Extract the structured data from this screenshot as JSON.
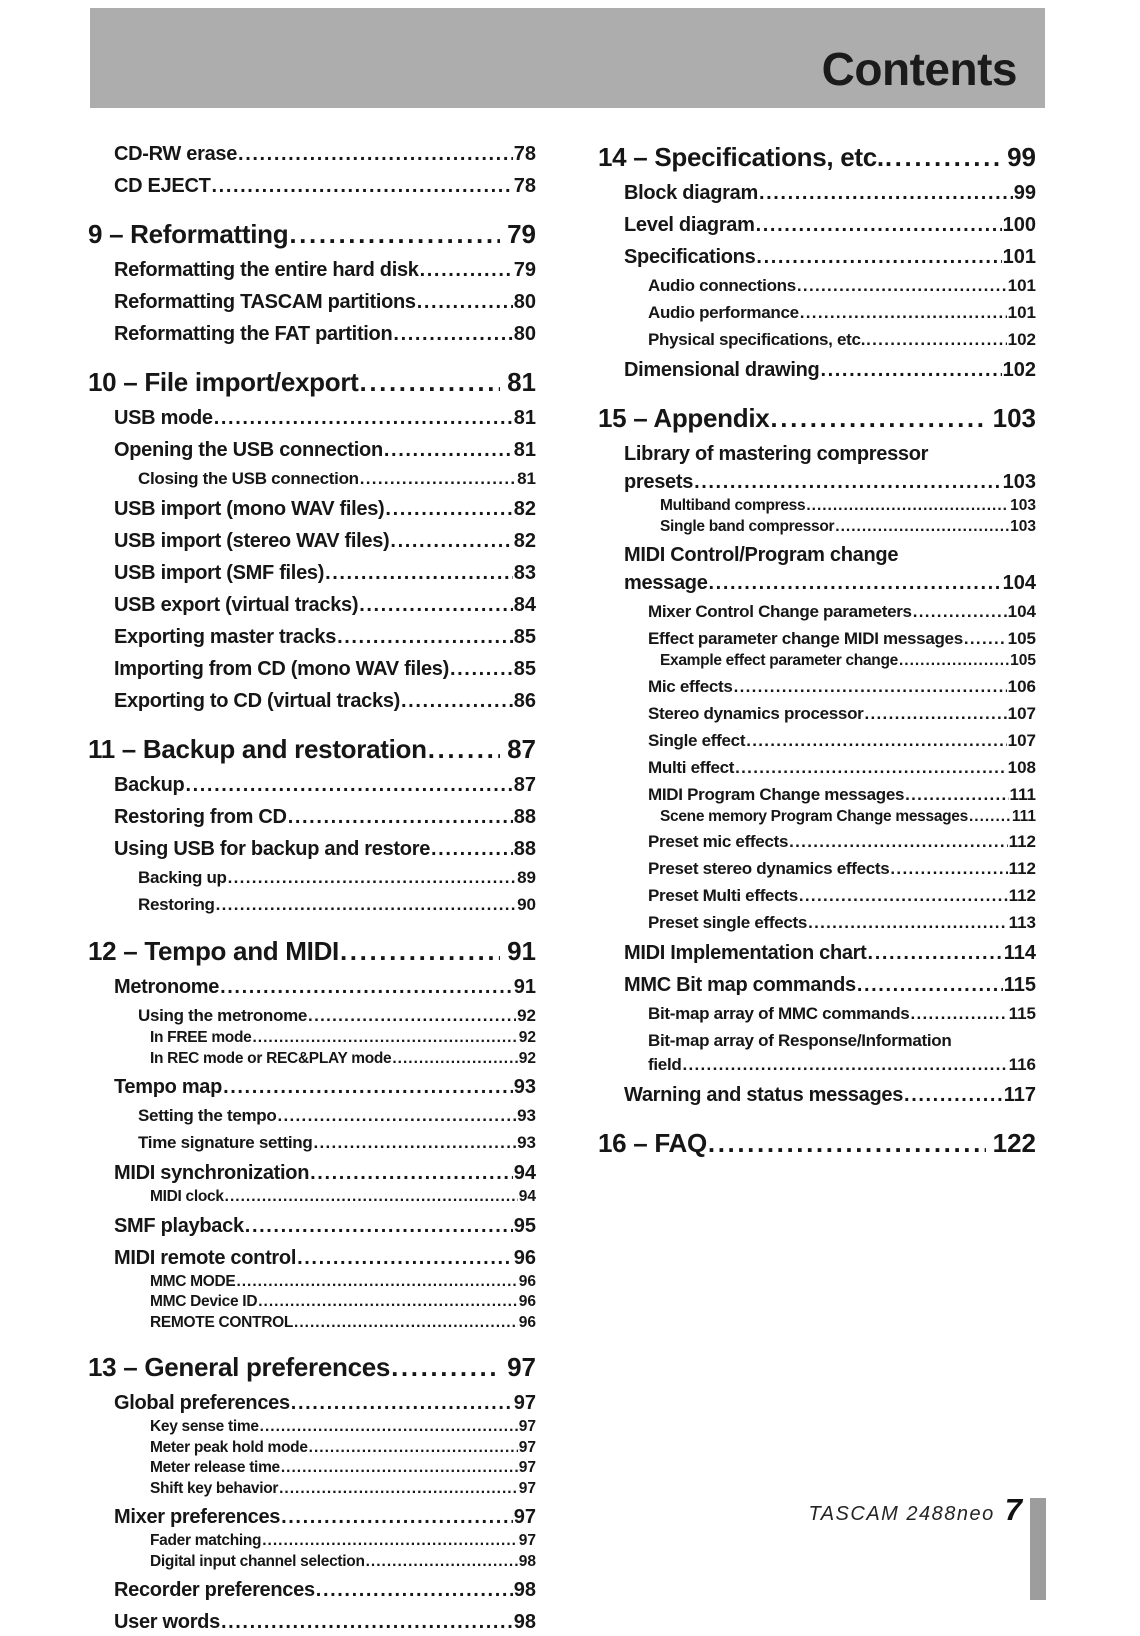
{
  "header": {
    "title": "Contents"
  },
  "footer": {
    "brand": "TASCAM 2488neo",
    "page_number": "7"
  },
  "colors": {
    "header_bg": "#adadad",
    "footer_tab": "#9d9d9d",
    "text": "#161616"
  },
  "toc": {
    "left": [
      {
        "level": "l1",
        "label": "CD-RW erase",
        "page": "78"
      },
      {
        "level": "l1",
        "label": "CD EJECT",
        "page": "78"
      },
      {
        "level": "ch",
        "label": "9 – Reformatting",
        "page": "79"
      },
      {
        "level": "l1",
        "label": "Reformatting the entire hard disk",
        "page": "79"
      },
      {
        "level": "l1",
        "label": "Reformatting TASCAM partitions",
        "page": "80"
      },
      {
        "level": "l1",
        "label": "Reformatting the FAT partition",
        "page": "80"
      },
      {
        "level": "ch",
        "label": "10 – File import/export",
        "page": "81"
      },
      {
        "level": "l1",
        "label": "USB mode",
        "page": "81"
      },
      {
        "level": "l1",
        "label": "Opening the USB connection",
        "page": "81"
      },
      {
        "level": "l2",
        "label": "Closing the USB connection",
        "page": "81"
      },
      {
        "level": "l1",
        "label": "USB import (mono WAV files)",
        "page": "82"
      },
      {
        "level": "l1",
        "label": "USB import (stereo WAV files)",
        "page": "82"
      },
      {
        "level": "l1",
        "label": "USB import (SMF files)",
        "page": "83"
      },
      {
        "level": "l1",
        "label": "USB export (virtual tracks)",
        "page": "84"
      },
      {
        "level": "l1",
        "label": "Exporting master tracks",
        "page": "85"
      },
      {
        "level": "l1",
        "label": "Importing from CD (mono WAV files)",
        "page": "85"
      },
      {
        "level": "l1",
        "label": "Exporting to CD (virtual tracks)",
        "page": "86"
      },
      {
        "level": "ch",
        "label": "11 – Backup and restoration",
        "page": "87"
      },
      {
        "level": "l1",
        "label": "Backup",
        "page": "87"
      },
      {
        "level": "l1",
        "label": "Restoring from CD",
        "page": "88"
      },
      {
        "level": "l1",
        "label": "Using USB for backup and restore",
        "page": "88"
      },
      {
        "level": "l2",
        "label": "Backing up",
        "page": "89"
      },
      {
        "level": "l2",
        "label": "Restoring",
        "page": "90"
      },
      {
        "level": "ch",
        "label": "12 – Tempo and MIDI",
        "page": "91"
      },
      {
        "level": "l1",
        "label": "Metronome",
        "page": "91"
      },
      {
        "level": "l2",
        "label": "Using the metronome",
        "page": "92"
      },
      {
        "level": "l3",
        "label": "In FREE mode",
        "page": "92"
      },
      {
        "level": "l3",
        "label": "In REC mode or REC&PLAY mode",
        "page": "92"
      },
      {
        "level": "l1",
        "label": "Tempo map",
        "page": "93"
      },
      {
        "level": "l2",
        "label": "Setting the tempo",
        "page": "93"
      },
      {
        "level": "l2",
        "label": "Time signature setting",
        "page": "93"
      },
      {
        "level": "l1",
        "label": "MIDI synchronization",
        "page": "94"
      },
      {
        "level": "l3",
        "label": "MIDI clock",
        "page": "94"
      },
      {
        "level": "l1",
        "label": "SMF playback",
        "page": "95"
      },
      {
        "level": "l1",
        "label": "MIDI remote control",
        "page": "96"
      },
      {
        "level": "l3",
        "label": "MMC MODE",
        "page": "96"
      },
      {
        "level": "l3",
        "label": "MMC Device ID",
        "page": "96"
      },
      {
        "level": "l3",
        "label": "REMOTE CONTROL",
        "page": "96"
      },
      {
        "level": "ch",
        "label": "13 – General preferences",
        "page": "97"
      },
      {
        "level": "l1",
        "label": "Global preferences",
        "page": "97"
      },
      {
        "level": "l3",
        "label": "Key sense time",
        "page": "97"
      },
      {
        "level": "l3",
        "label": "Meter peak hold mode",
        "page": "97"
      },
      {
        "level": "l3",
        "label": "Meter release time",
        "page": "97"
      },
      {
        "level": "l3",
        "label": "Shift key behavior",
        "page": "97"
      },
      {
        "level": "l1",
        "label": "Mixer preferences",
        "page": "97"
      },
      {
        "level": "l3",
        "label": "Fader matching",
        "page": "97"
      },
      {
        "level": "l3",
        "label": "Digital input channel selection",
        "page": "98"
      },
      {
        "level": "l1",
        "label": "Recorder preferences",
        "page": "98"
      },
      {
        "level": "l1",
        "label": "User words",
        "page": "98"
      }
    ],
    "right": [
      {
        "level": "ch",
        "label": "14 – Specifications, etc.",
        "page": "99"
      },
      {
        "level": "l1",
        "label": "Block diagram",
        "page": "99"
      },
      {
        "level": "l1",
        "label": "Level diagram",
        "page": "100"
      },
      {
        "level": "l1",
        "label": "Specifications",
        "page": "101"
      },
      {
        "level": "l2",
        "label": "Audio connections",
        "page": "101"
      },
      {
        "level": "l2",
        "label": "Audio performance",
        "page": "101"
      },
      {
        "level": "l2",
        "label": "Physical specifications, etc.",
        "page": "102"
      },
      {
        "level": "l1",
        "label": "Dimensional drawing",
        "page": "102"
      },
      {
        "level": "ch",
        "label": "15 – Appendix",
        "page": "103"
      },
      {
        "level": "l1",
        "pre": "Library of mastering compressor",
        "label": "presets",
        "page": "103"
      },
      {
        "level": "l3",
        "label": "Multiband compress",
        "page": "103"
      },
      {
        "level": "l3",
        "label": "Single band compressor",
        "page": "103"
      },
      {
        "level": "l1",
        "pre": "MIDI Control/Program change",
        "label": "message",
        "page": "104"
      },
      {
        "level": "l2",
        "label": "Mixer Control Change parameters",
        "page": "104"
      },
      {
        "level": "l2",
        "label": "Effect parameter change MIDI messages",
        "page": "105"
      },
      {
        "level": "l3",
        "label": "Example effect parameter change",
        "page": "105"
      },
      {
        "level": "l2",
        "label": "Mic effects",
        "page": "106"
      },
      {
        "level": "l2",
        "label": "Stereo dynamics processor",
        "page": "107"
      },
      {
        "level": "l2",
        "label": "Single effect",
        "page": "107"
      },
      {
        "level": "l2",
        "label": "Multi effect",
        "page": "108"
      },
      {
        "level": "l2",
        "label": "MIDI Program Change messages",
        "page": "111"
      },
      {
        "level": "l3",
        "label": "Scene memory Program Change messages",
        "page": "111"
      },
      {
        "level": "l2",
        "label": "Preset mic effects",
        "page": "112"
      },
      {
        "level": "l2",
        "label": "Preset stereo dynamics effects",
        "page": "112"
      },
      {
        "level": "l2",
        "label": "Preset Multi effects",
        "page": "112"
      },
      {
        "level": "l2",
        "label": "Preset single effects",
        "page": "113"
      },
      {
        "level": "l1",
        "label": "MIDI Implementation chart",
        "page": "114"
      },
      {
        "level": "l1",
        "label": "MMC Bit map commands",
        "page": "115"
      },
      {
        "level": "l2",
        "label": "Bit-map array of MMC commands",
        "page": "115"
      },
      {
        "level": "l2",
        "pre": "Bit-map array of Response/Information",
        "label": "field",
        "page": "116"
      },
      {
        "level": "l1",
        "label": "Warning and status messages",
        "page": "117"
      },
      {
        "level": "ch",
        "label": "16 – FAQ",
        "page": "122"
      }
    ]
  }
}
